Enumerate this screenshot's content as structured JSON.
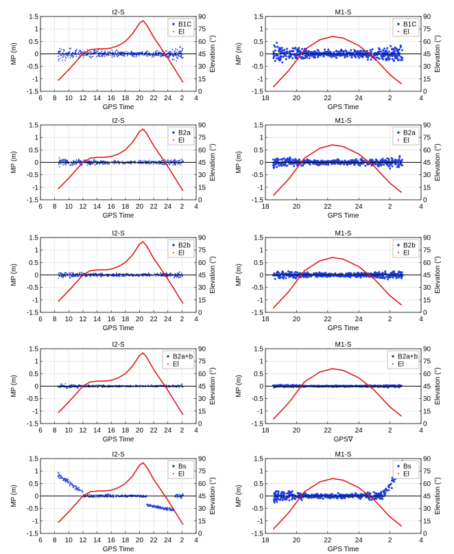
{
  "figure": {
    "colors": {
      "mp": "#1f3fe0",
      "el": "#e01818",
      "grid": "#dcdcdc",
      "axis": "#000000"
    }
  },
  "chart_data": [
    {
      "type": "scatter",
      "title": "I2-S",
      "xlabel": "GPS Time",
      "ylabel": "MP (m)",
      "ylabel_right": "Elevation (°)",
      "x_ticks": [
        6,
        8,
        10,
        12,
        14,
        16,
        18,
        20,
        22,
        24,
        2,
        4
      ],
      "x_range_hours": [
        6,
        28
      ],
      "ylim": [
        -1.5,
        1.5
      ],
      "y_ticks": [
        "-1.5",
        "-1",
        "-0.5",
        "0",
        "0.5",
        "1",
        "1.5"
      ],
      "y2lim": [
        0,
        90
      ],
      "y2_ticks": [
        "0",
        "15",
        "30",
        "45",
        "60",
        "75",
        "90"
      ],
      "legend": [
        "B1C",
        "El"
      ],
      "legend_position": "top-right",
      "mp_span_hours": [
        8.5,
        26.2
      ],
      "mp_noise_amplitude_m": 0.6,
      "elevation": {
        "x": [
          8.5,
          10,
          12,
          13,
          14,
          15,
          16,
          17,
          18,
          19,
          20,
          20.5,
          21,
          22,
          24,
          26.2
        ],
        "y": [
          13,
          26,
          45,
          50,
          51,
          51,
          52,
          55,
          60,
          69,
          82,
          85,
          80,
          65,
          40,
          10
        ]
      }
    },
    {
      "type": "scatter",
      "title": "M1-S",
      "xlabel": "GPS Time",
      "ylabel": "MP (m)",
      "ylabel_right": "Elevation (°)",
      "x_ticks": [
        18,
        20,
        22,
        24,
        2,
        4
      ],
      "x_range_hours": [
        18,
        28
      ],
      "ylim": [
        -1.5,
        1.5
      ],
      "y_ticks": [
        "-1.5",
        "-1",
        "-0.5",
        "0",
        "0.5",
        "1",
        "1.5"
      ],
      "y2lim": [
        0,
        90
      ],
      "y2_ticks": [
        "0",
        "15",
        "30",
        "45",
        "60",
        "75",
        "90"
      ],
      "legend": [
        "B1C",
        "El"
      ],
      "legend_position": "top-right",
      "mp_span_hours": [
        18.5,
        26.8
      ],
      "mp_noise_amplitude_m": 0.8,
      "elevation": {
        "x": [
          18.5,
          19.5,
          20.5,
          21.5,
          22.3,
          23,
          24,
          25,
          26,
          26.8
        ],
        "y": [
          5,
          25,
          50,
          62,
          66,
          64,
          55,
          40,
          20,
          8
        ]
      }
    },
    {
      "type": "scatter",
      "title": "I2-S",
      "xlabel": "GPS Time",
      "ylabel": "MP (m)",
      "ylabel_right": "Elevation (°)",
      "x_ticks": [
        6,
        8,
        10,
        12,
        14,
        16,
        18,
        20,
        22,
        24,
        2,
        4
      ],
      "x_range_hours": [
        6,
        28
      ],
      "ylim": [
        -1.5,
        1.5
      ],
      "y_ticks": [
        "-1.5",
        "-1",
        "-0.5",
        "0",
        "0.5",
        "1",
        "1.5"
      ],
      "y2lim": [
        0,
        90
      ],
      "y2_ticks": [
        "0",
        "15",
        "30",
        "45",
        "60",
        "75",
        "90"
      ],
      "legend": [
        "B2a",
        "El"
      ],
      "legend_position": "top-right",
      "mp_span_hours": [
        8.5,
        26.2
      ],
      "mp_noise_amplitude_m": 0.35,
      "elevation": {
        "x": [
          8.5,
          10,
          12,
          13,
          14,
          15,
          16,
          17,
          18,
          19,
          20,
          20.5,
          21,
          22,
          24,
          26.2
        ],
        "y": [
          13,
          26,
          45,
          50,
          51,
          51,
          52,
          55,
          60,
          69,
          82,
          85,
          80,
          65,
          40,
          10
        ]
      }
    },
    {
      "type": "scatter",
      "title": "M1-S",
      "xlabel": "GPS Time",
      "ylabel": "MP (m)",
      "ylabel_right": "Elevation (°)",
      "x_ticks": [
        18,
        20,
        22,
        24,
        2,
        4
      ],
      "x_range_hours": [
        18,
        28
      ],
      "ylim": [
        -1.5,
        1.5
      ],
      "y_ticks": [
        "-1.5",
        "-1",
        "-0.5",
        "0",
        "0.5",
        "1",
        "1.5"
      ],
      "y2lim": [
        0,
        90
      ],
      "y2_ticks": [
        "0",
        "15",
        "30",
        "45",
        "60",
        "75",
        "90"
      ],
      "legend": [
        "B2a",
        "El"
      ],
      "legend_position": "top-right",
      "mp_span_hours": [
        18.5,
        26.8
      ],
      "mp_noise_amplitude_m": 0.5,
      "elevation": {
        "x": [
          18.5,
          19.5,
          20.5,
          21.5,
          22.3,
          23,
          24,
          25,
          26,
          26.8
        ],
        "y": [
          5,
          25,
          50,
          62,
          66,
          64,
          55,
          40,
          20,
          8
        ]
      }
    },
    {
      "type": "scatter",
      "title": "I2-S",
      "xlabel": "GPS Time",
      "ylabel": "MP (m)",
      "ylabel_right": "Elevation (°)",
      "x_ticks": [
        6,
        8,
        10,
        12,
        14,
        16,
        18,
        20,
        22,
        24,
        2,
        4
      ],
      "x_range_hours": [
        6,
        28
      ],
      "ylim": [
        -1.5,
        1.5
      ],
      "y_ticks": [
        "-1.5",
        "-1",
        "-0.5",
        "0",
        "0.5",
        "1",
        "1.5"
      ],
      "y2lim": [
        0,
        90
      ],
      "y2_ticks": [
        "0",
        "15",
        "30",
        "45",
        "60",
        "75",
        "90"
      ],
      "legend": [
        "B2b",
        "El"
      ],
      "legend_position": "top-right",
      "mp_span_hours": [
        8.5,
        26.2
      ],
      "mp_noise_amplitude_m": 0.3,
      "elevation": {
        "x": [
          8.5,
          10,
          12,
          13,
          14,
          15,
          16,
          17,
          18,
          19,
          20,
          20.5,
          21,
          22,
          24,
          26.2
        ],
        "y": [
          13,
          26,
          45,
          50,
          51,
          51,
          52,
          55,
          60,
          69,
          82,
          85,
          80,
          65,
          40,
          10
        ]
      }
    },
    {
      "type": "scatter",
      "title": "M1-S",
      "xlabel": "GPS Time",
      "ylabel": "MP (m)",
      "ylabel_right": "Elevation (°)",
      "x_ticks": [
        18,
        20,
        22,
        24,
        2,
        4
      ],
      "x_range_hours": [
        18,
        28
      ],
      "ylim": [
        -1.5,
        1.5
      ],
      "y_ticks": [
        "-1.5",
        "-1",
        "-0.5",
        "0",
        "0.5",
        "1",
        "1.5"
      ],
      "y2lim": [
        0,
        90
      ],
      "y2_ticks": [
        "0",
        "15",
        "30",
        "45",
        "60",
        "75",
        "90"
      ],
      "legend": [
        "B2b",
        "El"
      ],
      "legend_position": "top-right",
      "mp_span_hours": [
        18.5,
        26.8
      ],
      "mp_noise_amplitude_m": 0.4,
      "elevation": {
        "x": [
          18.5,
          19.5,
          20.5,
          21.5,
          22.3,
          23,
          24,
          25,
          26,
          26.8
        ],
        "y": [
          5,
          25,
          50,
          62,
          66,
          64,
          55,
          40,
          20,
          8
        ]
      }
    },
    {
      "type": "scatter",
      "title": "I2-S",
      "xlabel": "GPS Time",
      "ylabel": "MP (m)",
      "ylabel_right": "Elevation (°)",
      "x_ticks": [
        6,
        8,
        10,
        12,
        14,
        16,
        18,
        20,
        22,
        24,
        2,
        4
      ],
      "x_range_hours": [
        6,
        28
      ],
      "ylim": [
        -1.5,
        1.5
      ],
      "y_ticks": [
        "-1.5",
        "-1",
        "-0.5",
        "0",
        "0.5",
        "1",
        "1.5"
      ],
      "y2lim": [
        0,
        90
      ],
      "y2_ticks": [
        "0",
        "15",
        "30",
        "45",
        "60",
        "75",
        "90"
      ],
      "legend": [
        "B2a+b",
        "El"
      ],
      "legend_position": "top-right",
      "mp_span_hours": [
        8.5,
        26.2
      ],
      "mp_noise_amplitude_m": 0.18,
      "elevation": {
        "x": [
          8.5,
          10,
          12,
          13,
          14,
          15,
          16,
          17,
          18,
          19,
          20,
          20.5,
          21,
          22,
          24,
          26.2
        ],
        "y": [
          13,
          26,
          45,
          50,
          51,
          51,
          52,
          55,
          60,
          69,
          82,
          85,
          80,
          65,
          40,
          10
        ]
      }
    },
    {
      "type": "scatter",
      "title": "M1-S",
      "xlabel": "GPS∇",
      "ylabel": "MP (m)",
      "ylabel_right": "Elevation (°)",
      "x_ticks": [
        18,
        20,
        22,
        24,
        2,
        4
      ],
      "x_range_hours": [
        18,
        28
      ],
      "ylim": [
        -1.5,
        1.5
      ],
      "y_ticks": [
        "-1.5",
        "-1",
        "-0.5",
        "0",
        "0.5",
        "1",
        "1.5"
      ],
      "y2lim": [
        0,
        90
      ],
      "y2_ticks": [
        "0",
        "15",
        "30",
        "45",
        "60",
        "75",
        "90"
      ],
      "legend": [
        "B2a+b",
        "El"
      ],
      "legend_position": "top-right",
      "mp_span_hours": [
        18.5,
        26.8
      ],
      "mp_noise_amplitude_m": 0.12,
      "elevation": {
        "x": [
          18.5,
          19.5,
          20.5,
          21.5,
          22.3,
          23,
          24,
          25,
          26,
          26.8
        ],
        "y": [
          5,
          25,
          50,
          62,
          66,
          64,
          55,
          40,
          20,
          8
        ]
      }
    },
    {
      "type": "scatter",
      "title": "I2-S",
      "xlabel": "GPS Time",
      "ylabel": "MP (m)",
      "ylabel_right": "Elevation (°)",
      "x_ticks": [
        6,
        8,
        10,
        12,
        14,
        16,
        18,
        20,
        22,
        24,
        2,
        4
      ],
      "x_range_hours": [
        6,
        28
      ],
      "ylim": [
        -1.5,
        1.5
      ],
      "y_ticks": [
        "-1.5",
        "-1",
        "-0.5",
        "0",
        "0.5",
        "1",
        "1.5"
      ],
      "y2lim": [
        0,
        90
      ],
      "y2_ticks": [
        "0",
        "15",
        "30",
        "45",
        "60",
        "75",
        "90"
      ],
      "legend": [
        "Bs",
        "El"
      ],
      "legend_position": "top-right",
      "mp_span_hours": [
        8.5,
        26.2
      ],
      "mp_noise_amplitude_m": 0.25,
      "mp_trend": "bs",
      "elevation": {
        "x": [
          8.5,
          10,
          12,
          13,
          14,
          15,
          16,
          17,
          18,
          19,
          20,
          20.5,
          21,
          22,
          24,
          26.2
        ],
        "y": [
          13,
          26,
          45,
          50,
          51,
          51,
          52,
          55,
          60,
          69,
          82,
          85,
          80,
          65,
          40,
          10
        ]
      }
    },
    {
      "type": "scatter",
      "title": "M1-S",
      "xlabel": "GPS Time",
      "ylabel": "MP (m)",
      "ylabel_right": "Elevation (°)",
      "x_ticks": [
        18,
        20,
        22,
        24,
        2,
        4
      ],
      "x_range_hours": [
        18,
        28
      ],
      "ylim": [
        -1.5,
        1.5
      ],
      "y_ticks": [
        "-1.5",
        "-1",
        "-0.5",
        "0",
        "0.5",
        "1",
        "1.5"
      ],
      "y2lim": [
        0,
        90
      ],
      "y2_ticks": [
        "0",
        "15",
        "30",
        "45",
        "60",
        "75",
        "90"
      ],
      "legend": [
        "Bs",
        "El"
      ],
      "legend_position": "top-right",
      "mp_span_hours": [
        18.5,
        26.8
      ],
      "mp_noise_amplitude_m": 0.5,
      "mp_trend": "bs",
      "elevation": {
        "x": [
          18.5,
          19.5,
          20.5,
          21.5,
          22.3,
          23,
          24,
          25,
          26,
          26.8
        ],
        "y": [
          5,
          25,
          50,
          62,
          66,
          64,
          55,
          40,
          20,
          8
        ]
      }
    }
  ]
}
